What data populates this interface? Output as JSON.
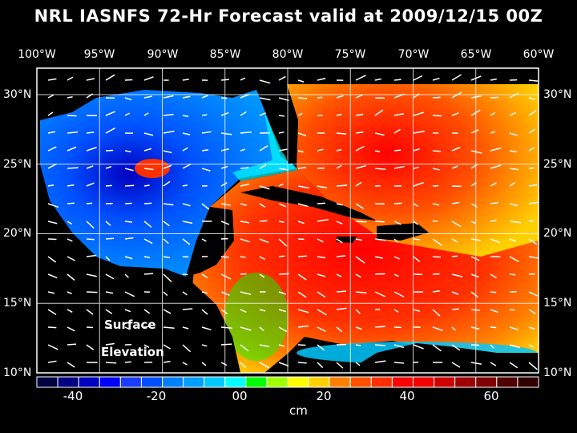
{
  "title": "NRL IASNFS  72-Hr Forecast valid at 2009/12/15 00Z",
  "lon_labels": [
    "100°W",
    "95°W",
    "90°W",
    "85°W",
    "80°W",
    "75°W",
    "70°W",
    "65°W",
    "60°W"
  ],
  "lat_labels": [
    "30°N",
    "25°N",
    "20°N",
    "15°N",
    "10°N"
  ],
  "map_label": {
    "line1": "Surface",
    "line2": "Elevation"
  },
  "colorbar": {
    "labels": [
      "-40",
      "-20",
      "00",
      "20",
      "40",
      "60"
    ],
    "unit": "cm",
    "colors": [
      "#000040",
      "#000080",
      "#0000c0",
      "#0000ff",
      "#1a3cff",
      "#0050ff",
      "#0080ff",
      "#00a0ff",
      "#00c8ff",
      "#00ffff",
      "#00ff00",
      "#a0ff00",
      "#ffff00",
      "#ffd000",
      "#ff8000",
      "#ff5000",
      "#ff3000",
      "#ff0000",
      "#f00000",
      "#d00000",
      "#a00000",
      "#800000",
      "#500000",
      "#300000"
    ]
  }
}
